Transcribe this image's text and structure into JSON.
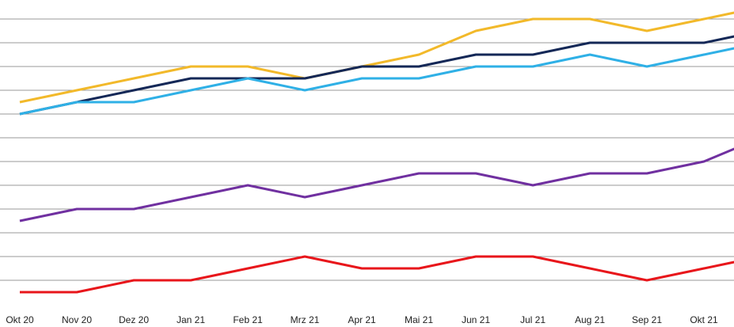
{
  "chart_data": {
    "type": "line",
    "categories": [
      "Okt 20",
      "Nov 20",
      "Dez 20",
      "Jan 21",
      "Feb 21",
      "Mrz 21",
      "Apr 21",
      "Mai 21",
      "Jun 21",
      "Jul 21",
      "Aug 21",
      "Sep 21",
      "Okt 21",
      null
    ],
    "series": [
      {
        "color": "#f2b92a",
        "values": [
          8.5,
          9,
          9.5,
          10,
          10,
          9.5,
          10,
          10.5,
          11.5,
          12,
          12,
          11.5,
          12,
          12.5
        ]
      },
      {
        "color": "#142857",
        "values": [
          8,
          8.5,
          9,
          9.5,
          9.5,
          9.5,
          10,
          10,
          10.5,
          10.5,
          11,
          11,
          11,
          11.5
        ]
      },
      {
        "color": "#2fb0e6",
        "values": [
          8,
          8.5,
          8.5,
          9,
          9.5,
          9,
          9.5,
          9.5,
          10,
          10,
          10.5,
          10,
          10.5,
          11
        ]
      },
      {
        "color": "#7030a0",
        "values": [
          3.5,
          4,
          4,
          4.5,
          5,
          4.5,
          5,
          5.5,
          5.5,
          5,
          5.5,
          5.5,
          6,
          7
        ]
      },
      {
        "color": "#e8161b",
        "values": [
          0.5,
          0.5,
          1,
          1,
          1.5,
          2,
          1.5,
          1.5,
          2,
          2,
          1.5,
          1,
          1.5,
          2
        ]
      }
    ],
    "ylim": [
      0,
      12
    ],
    "yticks": [
      1,
      2,
      3,
      4,
      5,
      6,
      7,
      8,
      9,
      10,
      11,
      12
    ],
    "grid": true
  }
}
